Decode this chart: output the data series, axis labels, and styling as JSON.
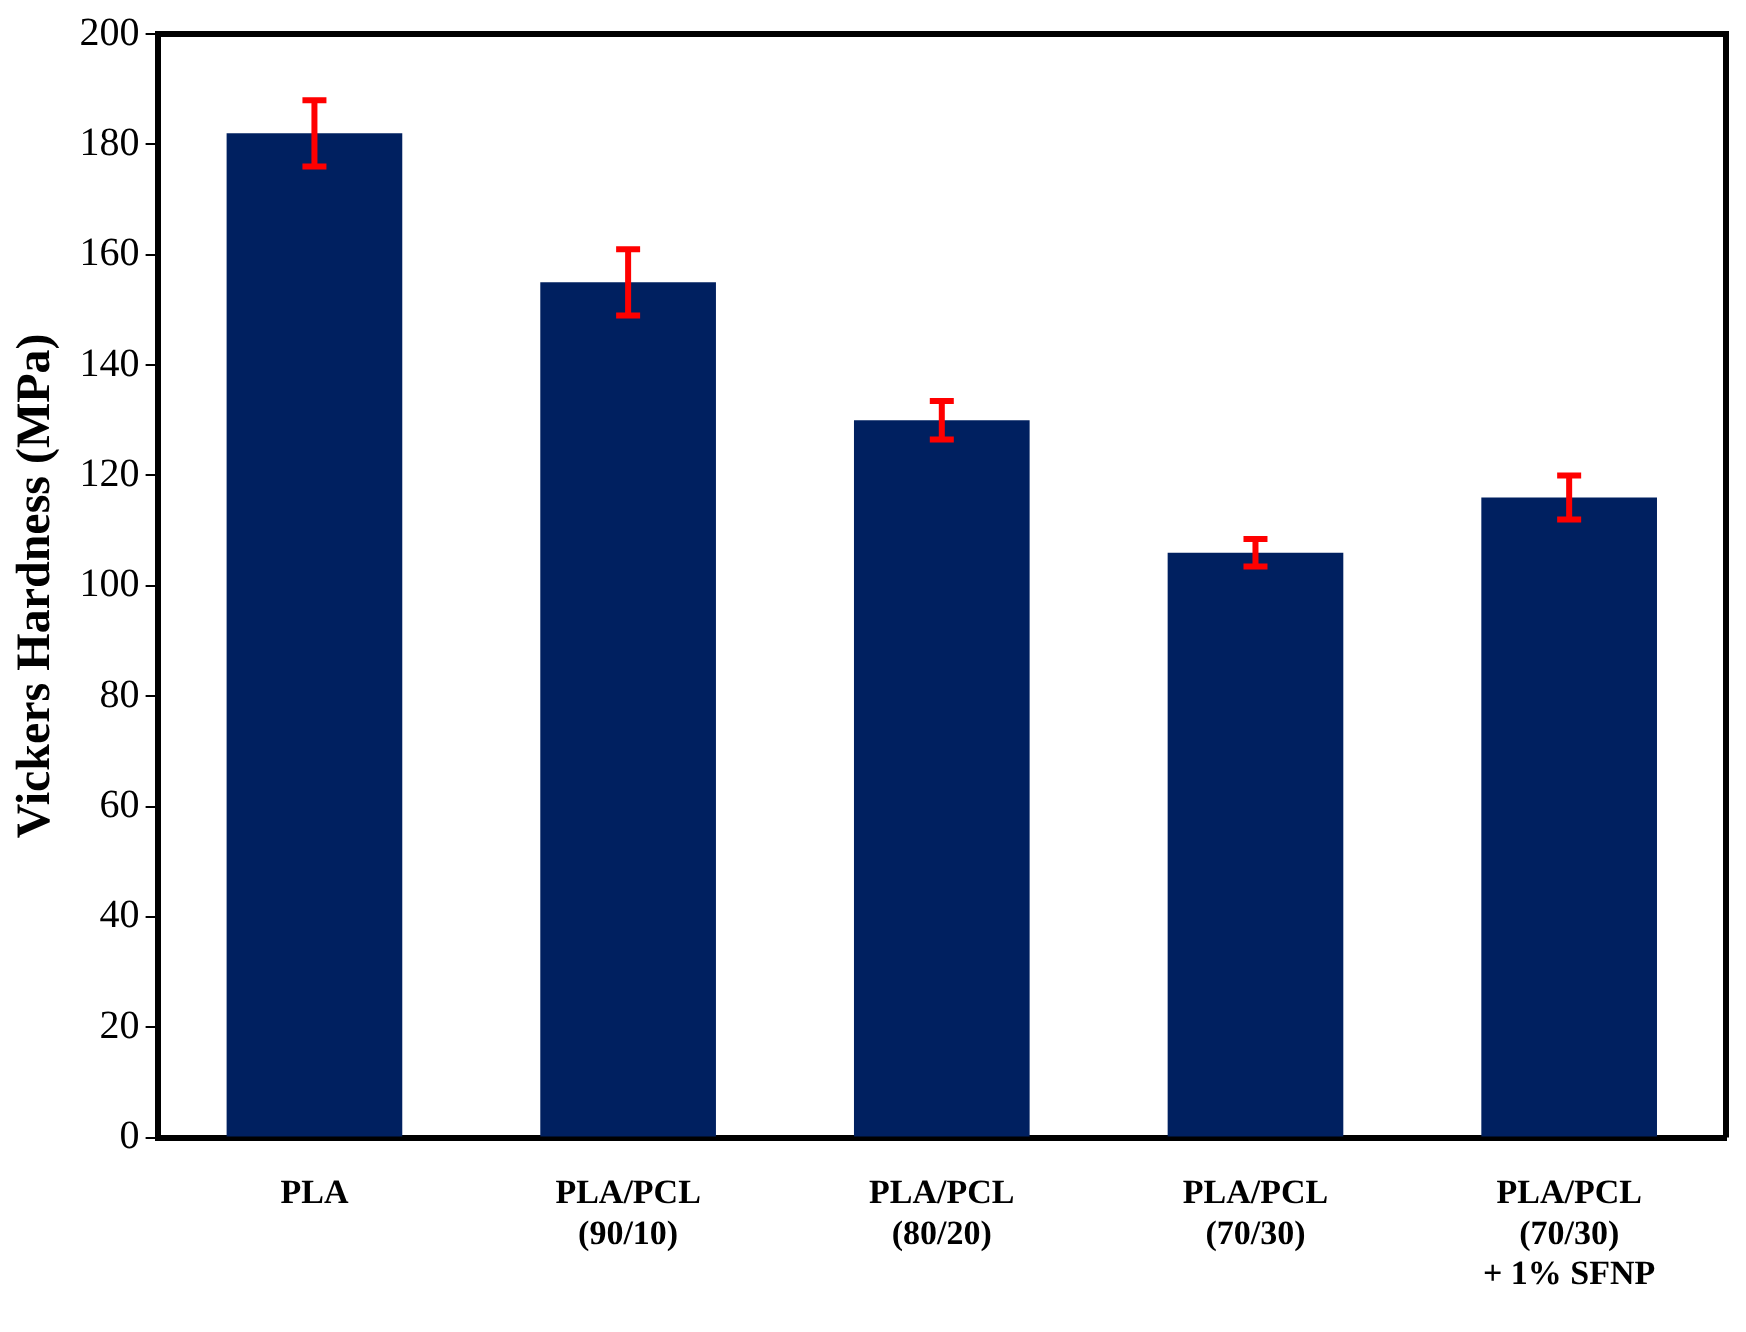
{
  "chart_data": {
    "type": "bar",
    "ylabel": "Vickers Hardness (MPa)",
    "categories": [
      "PLA",
      "PLA/PCL\n(90/10)",
      "PLA/PCL\n(80/20)",
      "PLA/PCL\n(70/30)",
      "PLA/PCL\n(70/30)\n+ 1% SFNP"
    ],
    "values": [
      182,
      155,
      130,
      106,
      116
    ],
    "errors": [
      6,
      6,
      3.5,
      2.5,
      4
    ],
    "color": "#002060",
    "ylim": [
      0,
      200
    ],
    "yticks": [
      0,
      20,
      40,
      60,
      80,
      100,
      120,
      140,
      160,
      180,
      200
    ],
    "grid": false,
    "legend": false
  }
}
